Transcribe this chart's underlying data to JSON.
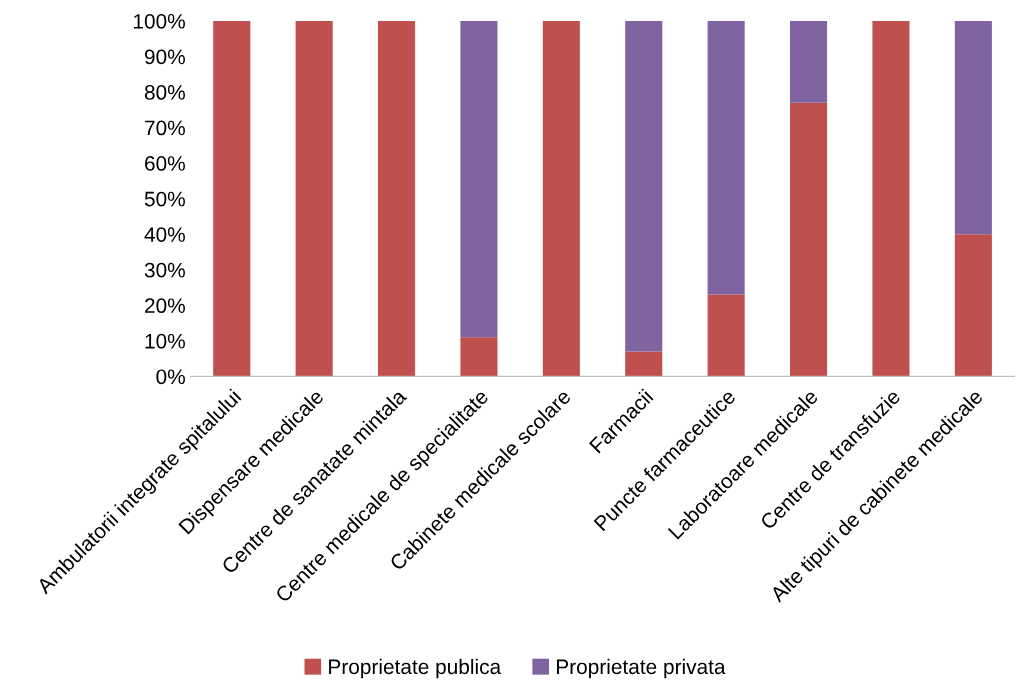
{
  "chart_data": {
    "type": "bar",
    "stacked": true,
    "categories": [
      "Ambulatorii integrate spitalului",
      "Dispensare medicale",
      "Centre de sanatate mintala",
      "Centre medicale de specialitate",
      "Cabinete medicale scolare",
      "Farmacii",
      "Puncte farmaceutice",
      "Laboratoare medicale",
      "Centre de transfuzie",
      "Alte tipuri de cabinete medicale"
    ],
    "series": [
      {
        "name": "Proprietate publica",
        "color": "#c0504d",
        "values": [
          100,
          100,
          100,
          11,
          100,
          7,
          23,
          77,
          100,
          40
        ]
      },
      {
        "name": "Proprietate privata",
        "color": "#8064a2",
        "values": [
          0,
          0,
          0,
          89,
          0,
          93,
          77,
          23,
          0,
          60
        ]
      }
    ],
    "ylim": [
      0,
      100
    ],
    "yticks": [
      {
        "value": 0,
        "label": "0%"
      },
      {
        "value": 10,
        "label": "10%"
      },
      {
        "value": 20,
        "label": "20%"
      },
      {
        "value": 30,
        "label": "30%"
      },
      {
        "value": 40,
        "label": "40%"
      },
      {
        "value": 50,
        "label": "50%"
      },
      {
        "value": 60,
        "label": "60%"
      },
      {
        "value": 70,
        "label": "70%"
      },
      {
        "value": 80,
        "label": "80%"
      },
      {
        "value": 90,
        "label": "90%"
      },
      {
        "value": 100,
        "label": "100%"
      }
    ],
    "legend": "bottom"
  }
}
